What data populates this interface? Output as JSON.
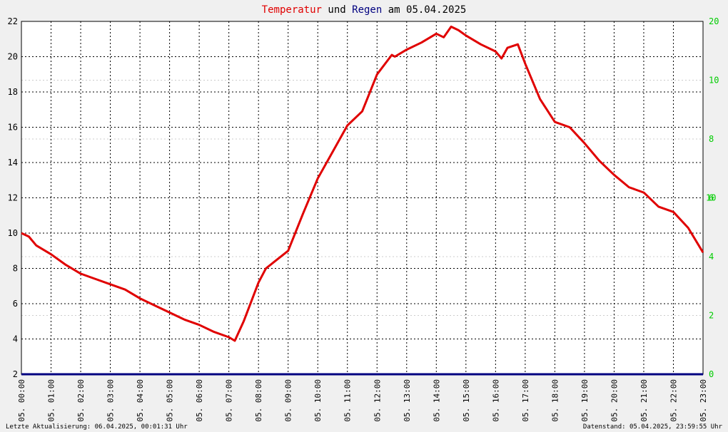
{
  "chart_data": {
    "type": "line",
    "title_parts": [
      "und",
      "am 05.04.2025"
    ],
    "x": [
      0,
      0.25,
      0.5,
      1,
      1.5,
      2,
      2.5,
      3,
      3.5,
      4,
      4.5,
      5,
      5.5,
      6,
      6.5,
      7,
      7.2,
      7.5,
      8,
      8.25,
      9,
      9.5,
      10,
      10.5,
      11,
      11.5,
      12,
      12.5,
      12.6,
      13,
      13.5,
      14,
      14.25,
      14.5,
      14.75,
      15,
      15.5,
      16,
      16.2,
      16.4,
      16.75,
      17,
      17.5,
      18,
      18.5,
      19,
      19.5,
      20,
      20.5,
      21,
      21.5,
      22,
      22.5,
      23
    ],
    "series": [
      {
        "name": "Temperatur",
        "color": "#e00000",
        "values": [
          10.0,
          9.8,
          9.3,
          8.8,
          8.2,
          7.7,
          7.4,
          7.1,
          6.8,
          6.3,
          5.9,
          5.5,
          5.1,
          4.8,
          4.4,
          4.1,
          3.9,
          5.0,
          7.2,
          8.0,
          9.0,
          11.1,
          13.1,
          14.6,
          16.1,
          16.9,
          19.0,
          20.1,
          20.0,
          20.4,
          20.8,
          21.3,
          21.1,
          21.7,
          21.5,
          21.2,
          20.7,
          20.3,
          19.9,
          20.5,
          20.7,
          19.6,
          17.6,
          16.3,
          16.0,
          15.1,
          14.1,
          13.3,
          12.6,
          12.3,
          11.5,
          11.2,
          10.3,
          8.9
        ]
      },
      {
        "name": "Regen",
        "color": "#000080",
        "axis": "y2",
        "values": [
          0,
          0,
          0,
          0,
          0,
          0,
          0,
          0,
          0,
          0,
          0,
          0,
          0,
          0,
          0,
          0,
          0,
          0,
          0,
          0,
          0,
          0,
          0,
          0,
          0,
          0,
          0,
          0,
          0,
          0,
          0,
          0,
          0,
          0,
          0,
          0,
          0,
          0,
          0,
          0,
          0,
          0,
          0,
          0,
          0,
          0,
          0,
          0,
          0,
          0,
          0,
          0,
          0,
          0
        ]
      }
    ],
    "xlim": [
      0,
      23
    ],
    "xticks": [
      {
        "value": 0,
        "label": "05. 00:00"
      },
      {
        "value": 1,
        "label": "05. 01:00"
      },
      {
        "value": 2,
        "label": "05. 02:00"
      },
      {
        "value": 3,
        "label": "05. 03:00"
      },
      {
        "value": 4,
        "label": "05. 04:00"
      },
      {
        "value": 5,
        "label": "05. 05:00"
      },
      {
        "value": 6,
        "label": "05. 06:00"
      },
      {
        "value": 7,
        "label": "05. 07:00"
      },
      {
        "value": 8,
        "label": "05. 08:00"
      },
      {
        "value": 9,
        "label": "05. 09:00"
      },
      {
        "value": 10,
        "label": "05. 10:00"
      },
      {
        "value": 11,
        "label": "05. 11:00"
      },
      {
        "value": 12,
        "label": "05. 12:00"
      },
      {
        "value": 13,
        "label": "05. 13:00"
      },
      {
        "value": 14,
        "label": "05. 14:00"
      },
      {
        "value": 15,
        "label": "05. 15:00"
      },
      {
        "value": 16,
        "label": "05. 16:00"
      },
      {
        "value": 17,
        "label": "05. 17:00"
      },
      {
        "value": 18,
        "label": "05. 18:00"
      },
      {
        "value": 19,
        "label": "05. 19:00"
      },
      {
        "value": 20,
        "label": "05. 20:00"
      },
      {
        "value": 21,
        "label": "05. 21:00"
      },
      {
        "value": 22,
        "label": "05. 22:00"
      },
      {
        "value": 23,
        "label": "05. 23:00"
      }
    ],
    "ylim": [
      2,
      22
    ],
    "yticks": [
      2,
      4,
      6,
      8,
      10,
      12,
      14,
      16,
      18,
      20,
      22
    ],
    "y2lim": [
      0,
      12
    ],
    "y2ticks": [
      0,
      2,
      4,
      6,
      8,
      10
    ],
    "y2_stray_labels": [
      "20",
      "10"
    ],
    "grid": true,
    "footer_left": "Letzte Aktualisierung: 06.04.2025, 00:01:31 Uhr",
    "footer_right": "Datenstand: 05.04.2025, 23:59:55 Uhr"
  }
}
